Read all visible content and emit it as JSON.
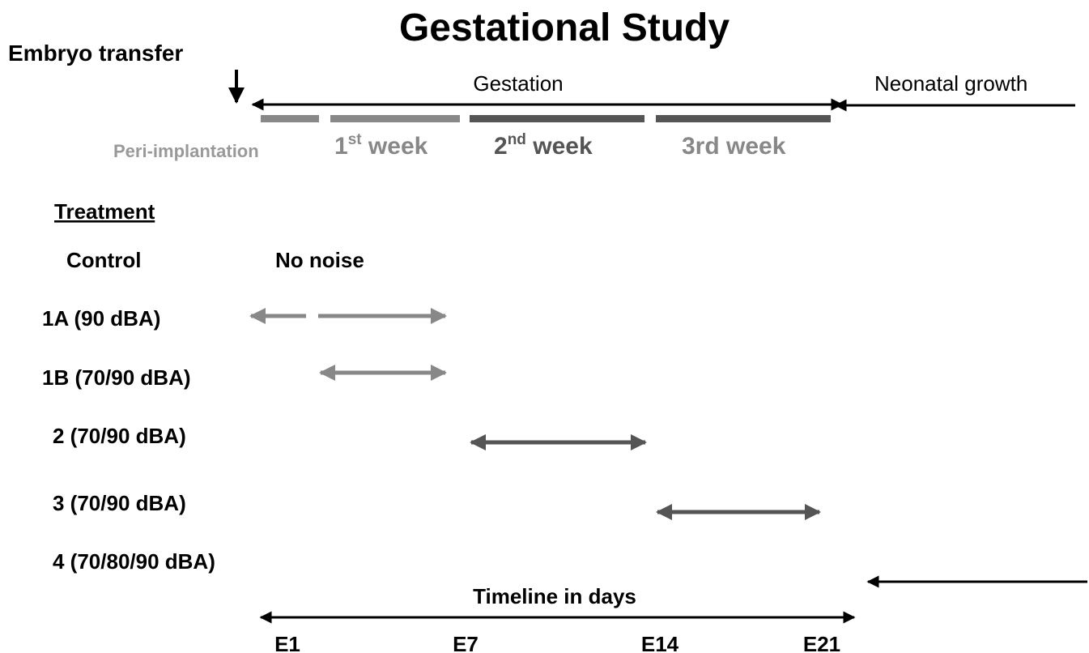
{
  "title": "Gestational Study",
  "embryo_transfer": "Embryo transfer",
  "gestation": "Gestation",
  "neonatal_growth": "Neonatal growth",
  "phases": {
    "peri_implantation": "Peri-implantation",
    "week1": {
      "number": "1",
      "suffix": "st",
      "word": " week"
    },
    "week2": {
      "number": "2",
      "suffix": "nd",
      "word": " week"
    },
    "week3": "3rd week"
  },
  "treatment_heading": "Treatment",
  "rows": [
    {
      "label": "Control",
      "note": "No noise"
    },
    {
      "label": "1A (90 dBA)"
    },
    {
      "label": "1B (70/90 dBA)"
    },
    {
      "label": "2 (70/90 dBA)"
    },
    {
      "label": "3 (70/90 dBA)"
    },
    {
      "label": "4 (70/80/90 dBA)"
    }
  ],
  "timeline": {
    "title": "Timeline in days",
    "days": [
      "E1",
      "E7",
      "E14",
      "E21"
    ]
  }
}
